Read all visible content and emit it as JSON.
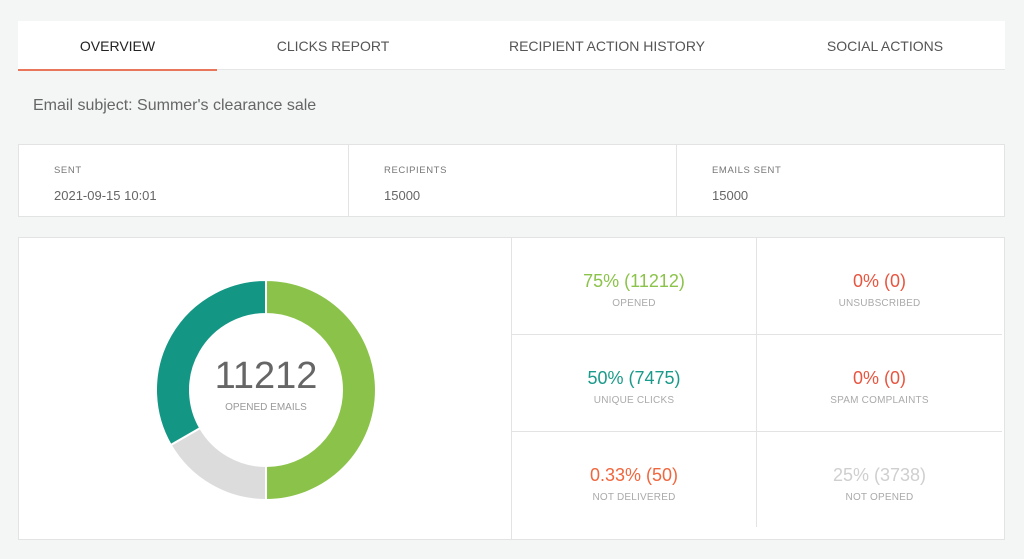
{
  "tabs": [
    {
      "label": "OVERVIEW"
    },
    {
      "label": "CLICKS REPORT"
    },
    {
      "label": "RECIPIENT ACTION HISTORY"
    },
    {
      "label": "SOCIAL ACTIONS"
    }
  ],
  "subject": "Email subject: Summer's clearance sale",
  "info": {
    "sent": {
      "label": "SENT",
      "value": "2021-09-15 10:01"
    },
    "recipients": {
      "label": "RECIPIENTS",
      "value": "15000"
    },
    "emails_sent": {
      "label": "EMAILS SENT",
      "value": "15000"
    }
  },
  "donut": {
    "center_value": "11212",
    "center_label": "OPENED EMAILS"
  },
  "stats": {
    "opened": {
      "value": "75% (11212)",
      "label": "OPENED",
      "color": "#8bc34a"
    },
    "unsubscribed": {
      "value": "0% (0)",
      "label": "UNSUBSCRIBED",
      "color": "#e8553f"
    },
    "unique_clicks": {
      "value": "50% (7475)",
      "label": "UNIQUE CLICKS",
      "color": "#1a9a8a"
    },
    "spam_complaints": {
      "value": "0% (0)",
      "label": "SPAM COMPLAINTS",
      "color": "#e8553f"
    },
    "not_delivered": {
      "value": "0.33% (50)",
      "label": "NOT DELIVERED",
      "color": "#f0663d"
    },
    "not_opened": {
      "value": "25% (3738)",
      "label": "NOT OPENED",
      "color": "#cfcfcf"
    }
  },
  "chart_data": {
    "type": "pie",
    "donut": true,
    "slices": [
      {
        "value": 11212,
        "color": "#8bc34a"
      },
      {
        "value": 3738,
        "color": "#dcdcdc"
      },
      {
        "value": 7475,
        "color": "#149685"
      }
    ],
    "start_angle_deg": 0
  },
  "colors": {
    "accent": "#e9765a"
  }
}
